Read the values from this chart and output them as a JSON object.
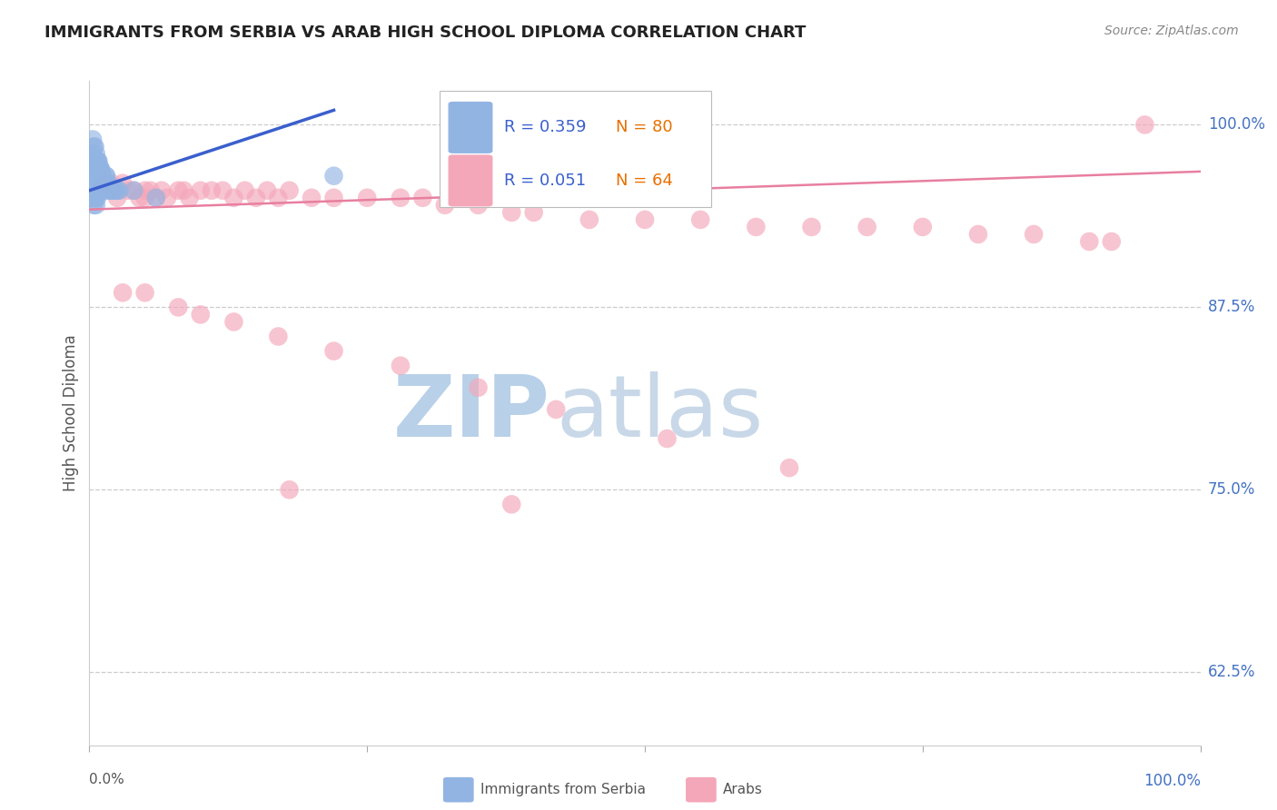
{
  "title": "IMMIGRANTS FROM SERBIA VS ARAB HIGH SCHOOL DIPLOMA CORRELATION CHART",
  "source": "Source: ZipAtlas.com",
  "ylabel": "High School Diploma",
  "right_yticks": [
    0.625,
    0.75,
    0.875,
    1.0
  ],
  "right_ytick_labels": [
    "62.5%",
    "75.0%",
    "87.5%",
    "100.0%"
  ],
  "legend_blue_r": "R = 0.359",
  "legend_blue_n": "N = 80",
  "legend_pink_r": "R = 0.051",
  "legend_pink_n": "N = 64",
  "legend_blue_label": "Immigrants from Serbia",
  "legend_pink_label": "Arabs",
  "blue_color": "#92b4e3",
  "pink_color": "#f4a7b9",
  "blue_line_color": "#3a5fcd",
  "pink_line_color": "#e87fa0",
  "blue_scatter_x": [
    0.001,
    0.001,
    0.002,
    0.002,
    0.002,
    0.002,
    0.003,
    0.003,
    0.003,
    0.003,
    0.003,
    0.003,
    0.004,
    0.004,
    0.004,
    0.004,
    0.004,
    0.004,
    0.005,
    0.005,
    0.005,
    0.005,
    0.005,
    0.006,
    0.006,
    0.006,
    0.006,
    0.006,
    0.006,
    0.006,
    0.007,
    0.007,
    0.007,
    0.007,
    0.007,
    0.008,
    0.008,
    0.008,
    0.008,
    0.009,
    0.009,
    0.009,
    0.01,
    0.01,
    0.01,
    0.01,
    0.011,
    0.011,
    0.011,
    0.012,
    0.012,
    0.012,
    0.013,
    0.013,
    0.014,
    0.015,
    0.015,
    0.016,
    0.017,
    0.018,
    0.019,
    0.02,
    0.021,
    0.022,
    0.024,
    0.025,
    0.027,
    0.003,
    0.004,
    0.005,
    0.006,
    0.007,
    0.008,
    0.009,
    0.01,
    0.012,
    0.015,
    0.04,
    0.06,
    0.22
  ],
  "blue_scatter_y": [
    0.96,
    0.975,
    0.97,
    0.96,
    0.955,
    0.95,
    0.98,
    0.975,
    0.97,
    0.965,
    0.96,
    0.955,
    0.975,
    0.965,
    0.96,
    0.955,
    0.95,
    0.945,
    0.975,
    0.97,
    0.965,
    0.96,
    0.955,
    0.975,
    0.97,
    0.965,
    0.96,
    0.955,
    0.95,
    0.945,
    0.97,
    0.965,
    0.96,
    0.955,
    0.95,
    0.975,
    0.97,
    0.965,
    0.96,
    0.97,
    0.965,
    0.96,
    0.97,
    0.965,
    0.96,
    0.955,
    0.965,
    0.96,
    0.955,
    0.965,
    0.96,
    0.955,
    0.96,
    0.955,
    0.96,
    0.965,
    0.96,
    0.96,
    0.96,
    0.955,
    0.955,
    0.955,
    0.955,
    0.955,
    0.955,
    0.955,
    0.955,
    0.99,
    0.985,
    0.985,
    0.98,
    0.975,
    0.975,
    0.97,
    0.97,
    0.965,
    0.965,
    0.955,
    0.95,
    0.965
  ],
  "pink_scatter_x": [
    0.01,
    0.01,
    0.015,
    0.02,
    0.02,
    0.025,
    0.025,
    0.03,
    0.035,
    0.04,
    0.045,
    0.05,
    0.05,
    0.055,
    0.06,
    0.065,
    0.07,
    0.08,
    0.085,
    0.09,
    0.1,
    0.11,
    0.12,
    0.13,
    0.14,
    0.15,
    0.16,
    0.17,
    0.18,
    0.2,
    0.22,
    0.25,
    0.28,
    0.3,
    0.32,
    0.35,
    0.38,
    0.4,
    0.45,
    0.5,
    0.55,
    0.6,
    0.65,
    0.7,
    0.75,
    0.8,
    0.85,
    0.9,
    0.92,
    0.95,
    0.03,
    0.05,
    0.08,
    0.1,
    0.13,
    0.17,
    0.22,
    0.28,
    0.35,
    0.42,
    0.52,
    0.63,
    0.18,
    0.38
  ],
  "pink_scatter_y": [
    0.96,
    0.955,
    0.96,
    0.96,
    0.955,
    0.955,
    0.95,
    0.96,
    0.955,
    0.955,
    0.95,
    0.955,
    0.95,
    0.955,
    0.95,
    0.955,
    0.95,
    0.955,
    0.955,
    0.95,
    0.955,
    0.955,
    0.955,
    0.95,
    0.955,
    0.95,
    0.955,
    0.95,
    0.955,
    0.95,
    0.95,
    0.95,
    0.95,
    0.95,
    0.945,
    0.945,
    0.94,
    0.94,
    0.935,
    0.935,
    0.935,
    0.93,
    0.93,
    0.93,
    0.93,
    0.925,
    0.925,
    0.92,
    0.92,
    1.0,
    0.885,
    0.885,
    0.875,
    0.87,
    0.865,
    0.855,
    0.845,
    0.835,
    0.82,
    0.805,
    0.785,
    0.765,
    0.75,
    0.74
  ],
  "xlim": [
    0.0,
    1.0
  ],
  "ylim": [
    0.575,
    1.03
  ],
  "watermark1": "ZIP",
  "watermark2": "atlas",
  "watermark_color1": "#b8d0e8",
  "watermark_color2": "#c8d8e8",
  "grid_color": "#cccccc",
  "background_color": "#ffffff",
  "blue_line_x": [
    0.0,
    0.22
  ],
  "blue_line_y_intercept": 0.955,
  "blue_line_slope": 0.25,
  "pink_line_x_start": 0.0,
  "pink_line_x_end": 1.0,
  "pink_line_y_start": 0.942,
  "pink_line_y_end": 0.968
}
